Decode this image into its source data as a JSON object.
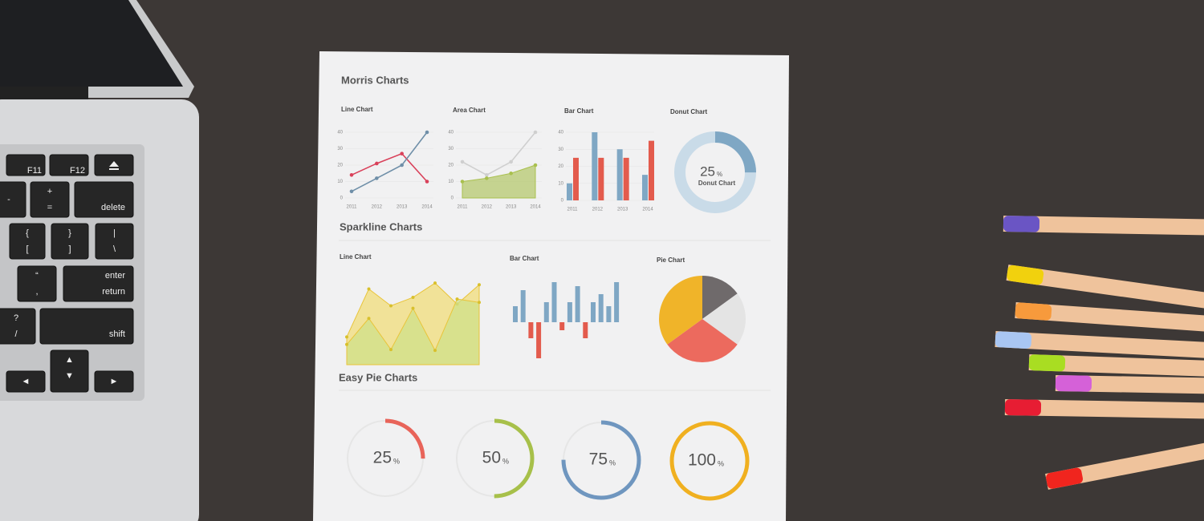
{
  "keyboard": {
    "keys": [
      [
        "F11"
      ],
      [
        "F12"
      ],
      [
        "-"
      ],
      [
        "+",
        "="
      ],
      [
        "delete"
      ],
      [
        "{",
        "["
      ],
      [
        "}",
        "]"
      ],
      [
        "|",
        "\\"
      ],
      [
        "“",
        ","
      ],
      [
        "enter",
        "return"
      ],
      [
        "?",
        "/"
      ],
      [
        "shift"
      ],
      [
        "▲",
        "▼"
      ],
      [
        "◄"
      ],
      [
        "►"
      ]
    ]
  },
  "morris": {
    "title": "Morris Charts",
    "line": {
      "title": "Line Chart",
      "yticks": [
        0,
        10,
        20,
        30,
        40
      ],
      "categories": [
        "2011",
        "2012",
        "2013",
        "2014"
      ],
      "series": [
        {
          "color": "#d9415a",
          "values": [
            14,
            21,
            27,
            10
          ]
        },
        {
          "color": "#6f8fa8",
          "values": [
            4,
            12,
            20,
            40
          ]
        }
      ]
    },
    "area": {
      "title": "Area Chart",
      "yticks": [
        0,
        10,
        20,
        30,
        40
      ],
      "categories": [
        "2011",
        "2012",
        "2013",
        "2014"
      ],
      "series": [
        {
          "color": "#cfcfcf",
          "values": [
            22,
            14,
            22,
            40
          ]
        },
        {
          "color": "#a9c04e",
          "values": [
            10,
            12,
            15,
            20
          ]
        }
      ]
    },
    "bar": {
      "title": "Bar Chart",
      "yticks": [
        0,
        10,
        20,
        30,
        40
      ],
      "categories": [
        "2011",
        "2012",
        "2013",
        "2014"
      ],
      "series": [
        {
          "color": "#7fa7c4",
          "values": [
            10,
            40,
            30,
            15
          ]
        },
        {
          "color": "#e35b4d",
          "values": [
            25,
            25,
            25,
            35
          ]
        }
      ]
    },
    "donut": {
      "title": "Donut Chart",
      "value": 25,
      "unit": "%",
      "label": "Donut Chart"
    }
  },
  "sparkline": {
    "title": "Sparkline Charts",
    "line": {
      "title": "Line Chart",
      "series": [
        {
          "color": "#f0dc7a",
          "values": [
            33,
            90,
            70,
            80,
            97,
            72,
            95
          ]
        },
        {
          "color": "#cfe08a",
          "values": [
            24,
            55,
            18,
            67,
            17,
            78,
            74
          ]
        }
      ]
    },
    "bar": {
      "title": "Bar Chart",
      "values": [
        4,
        8,
        -4,
        -9,
        5,
        10,
        -2,
        5,
        9,
        -4,
        5,
        7,
        4,
        10
      ]
    },
    "pie": {
      "title": "Pie Chart",
      "values": [
        15,
        20,
        30,
        35
      ],
      "colors": [
        "#6f6a6b",
        "#e4e4e4",
        "#ec6a5e",
        "#f0b429"
      ]
    }
  },
  "easy_pie": {
    "title": "Easy Pie Charts",
    "items": [
      {
        "value": 25,
        "unit": "%",
        "color": "#e8645a"
      },
      {
        "value": 50,
        "unit": "%",
        "color": "#a7c04a"
      },
      {
        "value": 75,
        "unit": "%",
        "color": "#6f96bf"
      },
      {
        "value": 100,
        "unit": "%",
        "color": "#f0b020"
      }
    ]
  }
}
